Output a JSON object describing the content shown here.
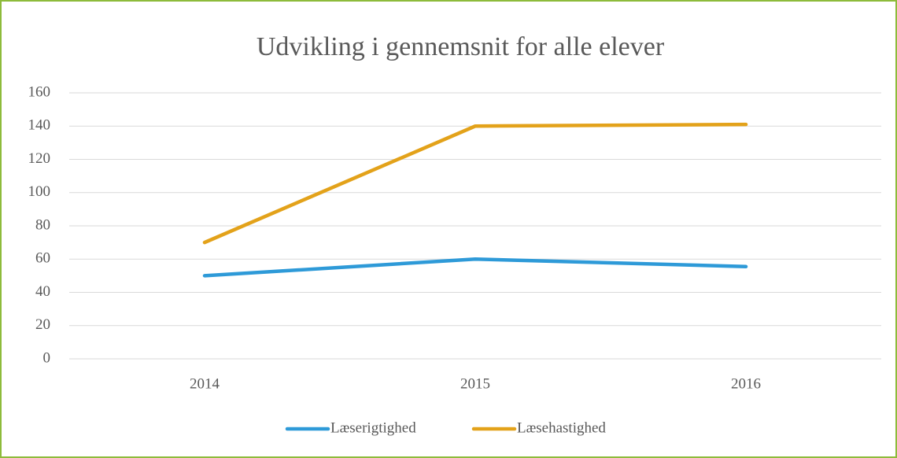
{
  "chart_data": {
    "type": "line",
    "title": "Udvikling i gennemsnit for alle elever",
    "categories": [
      "2014",
      "2015",
      "2016"
    ],
    "series": [
      {
        "name": "Læserigtighed",
        "color": "#2e9ad8",
        "values": [
          50,
          60,
          55.5
        ]
      },
      {
        "name": "Læsehastighed",
        "color": "#e3a21a",
        "values": [
          70,
          140,
          141
        ]
      }
    ],
    "ylim": [
      0,
      160
    ],
    "yticks": [
      0,
      20,
      40,
      60,
      80,
      100,
      120,
      140,
      160
    ],
    "grid": true,
    "legend": "bottom"
  }
}
